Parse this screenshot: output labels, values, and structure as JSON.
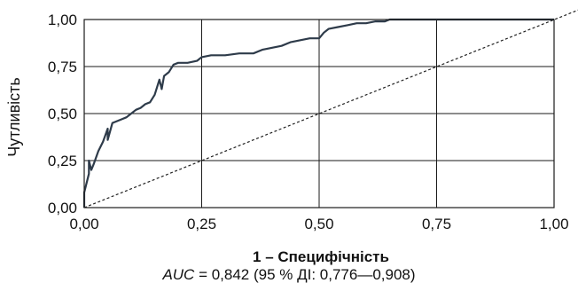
{
  "chart_data": {
    "type": "line",
    "xlabel": "1 – Специфічність",
    "ylabel": "Чутливість",
    "xlim": [
      0,
      1
    ],
    "ylim": [
      0,
      1
    ],
    "x_ticks": [
      "0,00",
      "0,25",
      "0,50",
      "0,75",
      "1,00"
    ],
    "y_ticks": [
      "0,00",
      "0,25",
      "0,50",
      "0,75",
      "1,00"
    ],
    "grid": true,
    "caption_metric": "AUC",
    "caption_rest": " = 0,842 (95 % ДІ: 0,776—0,908)",
    "reference_line": {
      "x": [
        0,
        1
      ],
      "y": [
        0,
        1
      ],
      "style": "dashed"
    },
    "series": [
      {
        "x": [
          0.0,
          0.0,
          0.01,
          0.01,
          0.015,
          0.02,
          0.03,
          0.04,
          0.05,
          0.05,
          0.06,
          0.07,
          0.08,
          0.09,
          0.1,
          0.11,
          0.12,
          0.13,
          0.14,
          0.15,
          0.16,
          0.165,
          0.17,
          0.18,
          0.19,
          0.2,
          0.22,
          0.24,
          0.25,
          0.27,
          0.3,
          0.33,
          0.36,
          0.38,
          0.4,
          0.42,
          0.44,
          0.46,
          0.48,
          0.5,
          0.51,
          0.52,
          0.54,
          0.56,
          0.58,
          0.6,
          0.62,
          0.64,
          0.65,
          0.7,
          0.8,
          0.9,
          1.0
        ],
        "y": [
          0.0,
          0.08,
          0.18,
          0.25,
          0.2,
          0.23,
          0.3,
          0.35,
          0.42,
          0.36,
          0.45,
          0.46,
          0.47,
          0.48,
          0.5,
          0.52,
          0.53,
          0.55,
          0.56,
          0.6,
          0.68,
          0.63,
          0.7,
          0.72,
          0.76,
          0.77,
          0.77,
          0.78,
          0.8,
          0.81,
          0.81,
          0.82,
          0.82,
          0.84,
          0.85,
          0.86,
          0.88,
          0.89,
          0.9,
          0.9,
          0.93,
          0.95,
          0.96,
          0.97,
          0.98,
          0.98,
          0.99,
          0.99,
          1.0,
          1.0,
          1.0,
          1.0,
          1.0
        ]
      }
    ]
  }
}
